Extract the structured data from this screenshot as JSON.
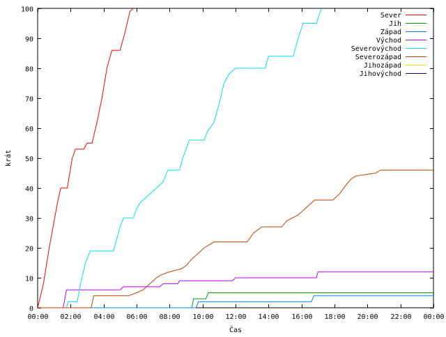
{
  "chart_data": {
    "type": "line",
    "title": "",
    "xlabel": "Čas",
    "ylabel": "krát",
    "xlim": [
      0,
      24
    ],
    "ylim": [
      0,
      100
    ],
    "grid": false,
    "legend_position": "top-right",
    "x_ticks": [
      {
        "value": 0,
        "label": "00:00"
      },
      {
        "value": 2,
        "label": "02:00"
      },
      {
        "value": 4,
        "label": "04:00"
      },
      {
        "value": 6,
        "label": "06:00"
      },
      {
        "value": 8,
        "label": "08:00"
      },
      {
        "value": 10,
        "label": "10:00"
      },
      {
        "value": 12,
        "label": "12:00"
      },
      {
        "value": 14,
        "label": "14:00"
      },
      {
        "value": 16,
        "label": "16:00"
      },
      {
        "value": 18,
        "label": "18:00"
      },
      {
        "value": 20,
        "label": "20:00"
      },
      {
        "value": 22,
        "label": "22:00"
      },
      {
        "value": 24,
        "label": "00:00"
      }
    ],
    "y_ticks": [
      0,
      10,
      20,
      30,
      40,
      50,
      60,
      70,
      80,
      90,
      100
    ],
    "series": [
      {
        "name": "Sever",
        "color": "#ff0000",
        "points": [
          [
            0,
            0
          ],
          [
            0.35,
            8
          ],
          [
            0.7,
            20
          ],
          [
            1.2,
            35
          ],
          [
            1.4,
            40
          ],
          [
            1.8,
            40
          ],
          [
            2.1,
            50
          ],
          [
            2.3,
            53
          ],
          [
            2.8,
            53
          ],
          [
            3.0,
            55
          ],
          [
            3.3,
            55
          ],
          [
            3.6,
            62
          ],
          [
            3.9,
            70
          ],
          [
            4.2,
            80
          ],
          [
            4.5,
            86
          ],
          [
            5.0,
            86
          ],
          [
            5.3,
            92
          ],
          [
            5.6,
            99
          ],
          [
            5.8,
            100
          ]
        ]
      },
      {
        "name": "Jih",
        "color": "#00a000",
        "points": [
          [
            0,
            0
          ],
          [
            9.35,
            0
          ],
          [
            9.45,
            3
          ],
          [
            10.2,
            3
          ],
          [
            10.35,
            5
          ],
          [
            24,
            5
          ]
        ]
      },
      {
        "name": "Západ",
        "color": "#0080ff",
        "points": [
          [
            0,
            0
          ],
          [
            9.6,
            0
          ],
          [
            9.75,
            2
          ],
          [
            16.6,
            2
          ],
          [
            16.75,
            4
          ],
          [
            24,
            4
          ]
        ]
      },
      {
        "name": "Východ",
        "color": "#c000ff",
        "points": [
          [
            0,
            0
          ],
          [
            1.55,
            0
          ],
          [
            1.75,
            6
          ],
          [
            5.0,
            6
          ],
          [
            5.2,
            7
          ],
          [
            7.4,
            7
          ],
          [
            7.6,
            8
          ],
          [
            8.5,
            8
          ],
          [
            8.6,
            9
          ],
          [
            11.8,
            9
          ],
          [
            12.0,
            10
          ],
          [
            16.9,
            10
          ],
          [
            17.0,
            12
          ],
          [
            24,
            12
          ]
        ]
      },
      {
        "name": "Severovýchod",
        "color": "#00e0ff",
        "points": [
          [
            0,
            0
          ],
          [
            1.75,
            0
          ],
          [
            1.85,
            2
          ],
          [
            2.4,
            2
          ],
          [
            2.6,
            8
          ],
          [
            2.9,
            15
          ],
          [
            3.2,
            19
          ],
          [
            4.6,
            19
          ],
          [
            5.0,
            27
          ],
          [
            5.2,
            30
          ],
          [
            5.8,
            30
          ],
          [
            6.0,
            33
          ],
          [
            6.2,
            35
          ],
          [
            6.8,
            38
          ],
          [
            7.2,
            40
          ],
          [
            7.6,
            42
          ],
          [
            7.9,
            46
          ],
          [
            8.6,
            46
          ],
          [
            8.8,
            50
          ],
          [
            9.0,
            53
          ],
          [
            9.2,
            56
          ],
          [
            10.1,
            56
          ],
          [
            10.3,
            59
          ],
          [
            10.7,
            62
          ],
          [
            11.0,
            68
          ],
          [
            11.3,
            75
          ],
          [
            11.6,
            78
          ],
          [
            12.0,
            80
          ],
          [
            13.8,
            80
          ],
          [
            14.0,
            84
          ],
          [
            15.5,
            84
          ],
          [
            15.8,
            90
          ],
          [
            16.1,
            95
          ],
          [
            16.9,
            95
          ],
          [
            17.2,
            100
          ]
        ]
      },
      {
        "name": "Severozápad",
        "color": "#c04000",
        "points": [
          [
            0,
            0
          ],
          [
            3.25,
            0
          ],
          [
            3.4,
            4
          ],
          [
            5.5,
            4
          ],
          [
            6.0,
            5
          ],
          [
            6.4,
            6
          ],
          [
            6.8,
            8
          ],
          [
            7.2,
            10
          ],
          [
            7.5,
            11
          ],
          [
            8.0,
            12
          ],
          [
            8.7,
            13
          ],
          [
            9.0,
            14
          ],
          [
            9.3,
            16
          ],
          [
            9.7,
            18
          ],
          [
            10.1,
            20
          ],
          [
            10.7,
            22
          ],
          [
            12.7,
            22
          ],
          [
            13.1,
            25
          ],
          [
            13.6,
            27
          ],
          [
            14.8,
            27
          ],
          [
            15.1,
            29
          ],
          [
            15.8,
            31
          ],
          [
            16.4,
            34
          ],
          [
            16.8,
            36
          ],
          [
            17.9,
            36
          ],
          [
            18.3,
            38
          ],
          [
            18.7,
            41
          ],
          [
            19.0,
            43
          ],
          [
            19.3,
            44
          ],
          [
            20.5,
            45
          ],
          [
            20.8,
            46
          ],
          [
            24,
            46
          ]
        ]
      },
      {
        "name": "Jihozápad",
        "color": "#e8e800",
        "points": []
      },
      {
        "name": "Jihovýchod",
        "color": "#000090",
        "points": []
      }
    ]
  }
}
